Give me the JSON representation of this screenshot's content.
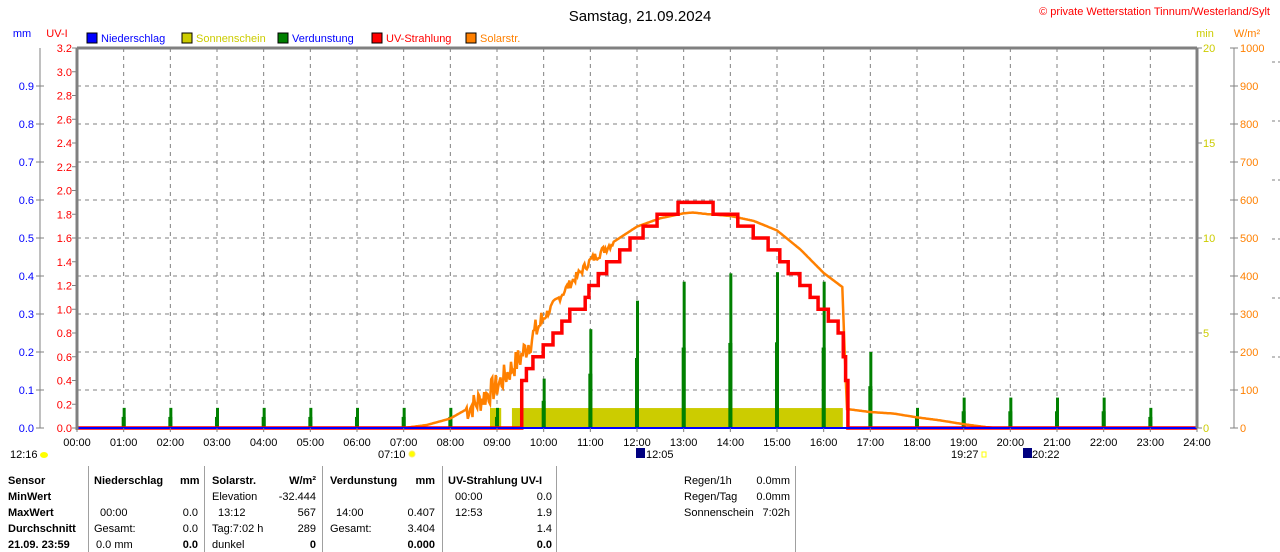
{
  "header": {
    "title": "Samstag, 21.09.2024",
    "copyright": "© private Wetterstation Tinnum/Westerland/Sylt"
  },
  "legend": [
    {
      "label": "Niederschlag",
      "color": "#0000ff",
      "text_color": "#0000ff"
    },
    {
      "label": "Sonnenschein",
      "color": "#cccc00",
      "text_color": "#cccc00"
    },
    {
      "label": "Verdunstung",
      "color": "#008000",
      "text_color": "#0000ff"
    },
    {
      "label": "UV-Strahlung",
      "color": "#ff0000",
      "text_color": "#ff0000"
    },
    {
      "label": "Solarstr.",
      "color": "#ff8000",
      "text_color": "#ff8000"
    }
  ],
  "astro": {
    "moon_left": "12:16",
    "sunrise": "07:10",
    "moonrise": "12:05",
    "sunset": "19:27",
    "moonset": "20:22"
  },
  "chart_data": {
    "type": "line",
    "title": "Samstag, 21.09.2024",
    "x_ticks": [
      "00:00",
      "01:00",
      "02:00",
      "03:00",
      "04:00",
      "05:00",
      "06:00",
      "07:00",
      "08:00",
      "09:00",
      "10:00",
      "11:00",
      "12:00",
      "13:00",
      "14:00",
      "15:00",
      "16:00",
      "17:00",
      "18:00",
      "19:00",
      "20:00",
      "21:00",
      "22:00",
      "23:00",
      "24:00"
    ],
    "xlim_hours": [
      0,
      24
    ],
    "axes": {
      "mm": {
        "label": "mm",
        "range": [
          0,
          1.0
        ],
        "ticks": [
          "0.0",
          "0.1",
          "0.2",
          "0.3",
          "0.4",
          "0.5",
          "0.6",
          "0.7",
          "0.8",
          "0.9"
        ],
        "color": "#0000ff"
      },
      "uv": {
        "label": "UV-I",
        "range": [
          0,
          3.2
        ],
        "ticks": [
          "0.0",
          "0.2",
          "0.4",
          "0.6",
          "0.8",
          "1.0",
          "1.2",
          "1.4",
          "1.6",
          "1.8",
          "2.0",
          "2.2",
          "2.4",
          "2.6",
          "2.8",
          "3.0",
          "3.2"
        ],
        "color": "#ff0000"
      },
      "min": {
        "label": "min",
        "range": [
          0,
          20
        ],
        "ticks": [
          "0",
          "5",
          "10",
          "15",
          "20"
        ],
        "color": "#cccc00"
      },
      "wm2": {
        "label": "W/m²",
        "range": [
          0,
          1000
        ],
        "ticks": [
          "0",
          "100",
          "200",
          "300",
          "400",
          "500",
          "600",
          "700",
          "800",
          "900",
          "1000"
        ],
        "color": "#ff8000"
      }
    },
    "grid": true,
    "series": [
      {
        "name": "Niederschlag",
        "axis": "mm",
        "type": "line",
        "points": [
          [
            0,
            0
          ],
          [
            24,
            0
          ]
        ]
      },
      {
        "name": "Sonnenschein",
        "axis": "min",
        "type": "bar-span",
        "spans": [
          [
            8.85,
            9.09,
            1.05
          ],
          [
            9.32,
            16.41,
            1.05
          ]
        ]
      },
      {
        "name": "Verdunstung",
        "axis": "mm",
        "type": "bar",
        "hours": [
          1,
          2,
          3,
          4,
          5,
          6,
          7,
          8,
          9,
          10,
          11,
          12,
          13,
          14,
          15,
          16,
          17,
          18,
          19,
          20,
          21,
          22,
          23
        ],
        "values": [
          0.053,
          0.053,
          0.053,
          0.053,
          0.053,
          0.053,
          0.053,
          0.053,
          0.053,
          0.13,
          0.26,
          0.335,
          0.385,
          0.407,
          0.41,
          0.385,
          0.2,
          0.053,
          0.08,
          0.08,
          0.08,
          0.08,
          0.053
        ]
      },
      {
        "name": "UV-Strahlung",
        "axis": "uv",
        "type": "step",
        "points": [
          [
            0,
            0
          ],
          [
            9.53,
            0
          ],
          [
            9.53,
            0.4
          ],
          [
            9.63,
            0.5
          ],
          [
            9.77,
            0.6
          ],
          [
            9.99,
            0.7
          ],
          [
            10.2,
            0.8
          ],
          [
            10.39,
            0.9
          ],
          [
            10.56,
            1.0
          ],
          [
            10.89,
            1.1
          ],
          [
            10.97,
            1.2
          ],
          [
            11.17,
            1.3
          ],
          [
            11.35,
            1.4
          ],
          [
            11.63,
            1.5
          ],
          [
            11.85,
            1.6
          ],
          [
            12.13,
            1.7
          ],
          [
            12.43,
            1.8
          ],
          [
            12.88,
            1.9
          ],
          [
            13.63,
            1.8
          ],
          [
            14.16,
            1.7
          ],
          [
            14.49,
            1.6
          ],
          [
            14.81,
            1.5
          ],
          [
            15.06,
            1.4
          ],
          [
            15.24,
            1.3
          ],
          [
            15.49,
            1.2
          ],
          [
            15.71,
            1.1
          ],
          [
            15.88,
            1.0
          ],
          [
            16.1,
            0.9
          ],
          [
            16.31,
            0.8
          ],
          [
            16.42,
            0.6
          ],
          [
            16.47,
            0.4
          ],
          [
            16.52,
            0
          ],
          [
            24,
            0
          ]
        ]
      },
      {
        "name": "Solarstr.",
        "axis": "wm2",
        "type": "line",
        "points": [
          [
            7.0,
            0
          ],
          [
            7.5,
            8
          ],
          [
            8.0,
            25
          ],
          [
            8.5,
            60
          ],
          [
            9.0,
            110
          ],
          [
            9.5,
            185
          ],
          [
            10.0,
            290
          ],
          [
            10.5,
            370
          ],
          [
            11.0,
            440
          ],
          [
            11.5,
            490
          ],
          [
            12.0,
            530
          ],
          [
            12.5,
            552
          ],
          [
            13.0,
            565
          ],
          [
            13.2,
            567
          ],
          [
            13.5,
            563
          ],
          [
            14.0,
            558
          ],
          [
            14.5,
            545
          ],
          [
            15.0,
            520
          ],
          [
            15.5,
            470
          ],
          [
            16.0,
            408
          ],
          [
            16.4,
            371
          ],
          [
            16.45,
            200
          ],
          [
            16.5,
            50
          ],
          [
            17.0,
            42
          ],
          [
            17.5,
            38
          ],
          [
            18.0,
            28
          ],
          [
            18.5,
            20
          ],
          [
            19.0,
            10
          ],
          [
            19.5,
            2
          ],
          [
            19.7,
            0
          ]
        ]
      }
    ]
  },
  "table": {
    "row_labels": [
      "Sensor",
      "MinWert",
      "MaxWert",
      "Durchschnitt",
      "21.09.  23:59"
    ],
    "niederschlag": {
      "header": "Niederschlag",
      "unit": "mm",
      "max_time": "00:00",
      "max_val": "0.0",
      "avg_label": "Gesamt:",
      "avg_val": "0.0",
      "cur_label": "0.0 mm",
      "cur_val": "0.0"
    },
    "solar": {
      "header": "Solarstr.",
      "unit": "W/m²",
      "min_label": "Elevation",
      "min_val": "-32.444",
      "max_time": "13:12",
      "max_val": "567",
      "avg_label": "Tag:7:02 h",
      "avg_val": "289",
      "cur_label": "dunkel",
      "cur_val": "0"
    },
    "verdunstung": {
      "header": "Verdunstung",
      "unit": "mm",
      "max_time": "14:00",
      "max_val": "0.407",
      "avg_label": "Gesamt:",
      "avg_val": "3.404",
      "cur_val": "0.000"
    },
    "uv": {
      "header": "UV-Strahlung UV-I",
      "min_time": "00:00",
      "min_val": "0.0",
      "max_time": "12:53",
      "max_val": "1.9",
      "avg_val": "1.4",
      "cur_val": "0.0"
    },
    "summary": [
      {
        "label": "Regen/1h",
        "value": "0.0mm"
      },
      {
        "label": "Regen/Tag",
        "value": "0.0mm"
      },
      {
        "label": "Sonnenschein",
        "value": "7:02h"
      }
    ]
  }
}
